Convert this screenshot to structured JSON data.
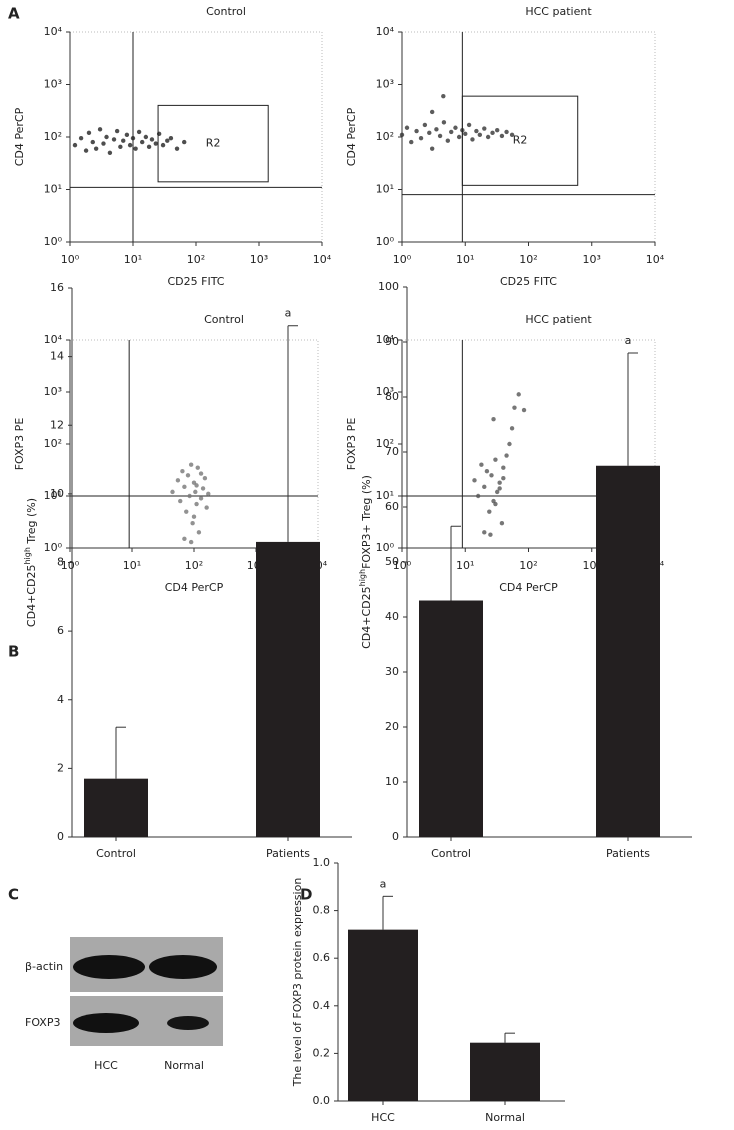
{
  "panel_labels": [
    "A",
    "B",
    "C",
    "D"
  ],
  "blot": {
    "rows": [
      "β-actin",
      "FOXP3"
    ],
    "lanes": [
      "HCC",
      "Normal"
    ]
  },
  "chart_data": [
    {
      "type": "scatter",
      "title": "Control",
      "xlabel": "CD25 FITC",
      "ylabel": "CD4 PerCP",
      "xscale": "log",
      "yscale": "log",
      "xlim": [
        1,
        10000
      ],
      "ylim": [
        1,
        10000
      ],
      "xticks": [
        {
          "value": 1,
          "label": "10⁰"
        },
        {
          "value": 10,
          "label": "10¹"
        },
        {
          "value": 100,
          "label": "10²"
        },
        {
          "value": 1000,
          "label": "10³"
        },
        {
          "value": 10000,
          "label": "10⁴"
        }
      ],
      "yticks": [
        {
          "value": 1,
          "label": "10⁰"
        },
        {
          "value": 10,
          "label": "10¹"
        },
        {
          "value": 100,
          "label": "10²"
        },
        {
          "value": 1000,
          "label": "10³"
        },
        {
          "value": 10000,
          "label": "10⁴"
        }
      ],
      "quadrant": {
        "x": 10,
        "y": 11
      },
      "gate": {
        "label": "R2",
        "x": [
          25,
          1400
        ],
        "y": [
          14,
          400
        ]
      },
      "color": "#222222",
      "x": [
        1.2,
        1.5,
        1.8,
        2,
        2.3,
        2.6,
        3,
        3.4,
        3.8,
        4.3,
        5,
        5.6,
        6.3,
        7,
        8,
        9,
        10,
        11,
        12.5,
        14,
        16,
        18,
        20,
        23,
        26,
        30,
        35,
        40,
        50,
        65
      ],
      "y": [
        70,
        95,
        55,
        120,
        80,
        60,
        140,
        75,
        100,
        50,
        90,
        130,
        65,
        85,
        110,
        70,
        95,
        60,
        125,
        80,
        100,
        65,
        90,
        75,
        115,
        70,
        85,
        95,
        60,
        80
      ]
    },
    {
      "type": "scatter",
      "title": "HCC patient",
      "xlabel": "CD25 FITC",
      "ylabel": "CD4 PerCP",
      "xscale": "log",
      "yscale": "log",
      "xlim": [
        1,
        10000
      ],
      "ylim": [
        1,
        10000
      ],
      "xticks": [
        {
          "value": 1,
          "label": "10⁰"
        },
        {
          "value": 10,
          "label": "10¹"
        },
        {
          "value": 100,
          "label": "10²"
        },
        {
          "value": 1000,
          "label": "10³"
        },
        {
          "value": 10000,
          "label": "10⁴"
        }
      ],
      "yticks": [
        {
          "value": 1,
          "label": "10⁰"
        },
        {
          "value": 10,
          "label": "10¹"
        },
        {
          "value": 100,
          "label": "10²"
        },
        {
          "value": 1000,
          "label": "10³"
        },
        {
          "value": 10000,
          "label": "10⁴"
        }
      ],
      "quadrant": {
        "x": 9,
        "y": 8
      },
      "gate": {
        "label": "R2",
        "x": [
          9,
          600
        ],
        "y": [
          12,
          600
        ]
      },
      "color": "#333333",
      "x": [
        1,
        1.2,
        1.4,
        1.7,
        2,
        2.3,
        2.7,
        3,
        3.5,
        4,
        4.6,
        5.3,
        6,
        7,
        8,
        9,
        10,
        11.5,
        13,
        15,
        17,
        20,
        23,
        27,
        32,
        38,
        45,
        55,
        4.5,
        3
      ],
      "y": [
        110,
        150,
        80,
        130,
        95,
        170,
        120,
        60,
        140,
        105,
        190,
        85,
        125,
        150,
        100,
        135,
        115,
        170,
        90,
        130,
        110,
        145,
        100,
        120,
        135,
        105,
        125,
        110,
        600,
        300
      ]
    },
    {
      "type": "scatter",
      "title": "Control",
      "xlabel": "CD4 PerCP",
      "ylabel": "FOXP3 PE",
      "xscale": "log",
      "yscale": "log",
      "xlim": [
        1,
        10000
      ],
      "ylim": [
        1,
        10000
      ],
      "xticks": [
        {
          "value": 1,
          "label": "10⁰"
        },
        {
          "value": 10,
          "label": "10¹"
        },
        {
          "value": 100,
          "label": "10²"
        },
        {
          "value": 1000,
          "label": "10³"
        },
        {
          "value": 10000,
          "label": "10⁴"
        }
      ],
      "yticks": [
        {
          "value": 1,
          "label": "10⁰"
        },
        {
          "value": 10,
          "label": "10¹"
        },
        {
          "value": 100,
          "label": "10²"
        },
        {
          "value": 1000,
          "label": "10³"
        },
        {
          "value": 10000,
          "label": "10⁴"
        }
      ],
      "quadrant": {
        "x": 9,
        "y": 10
      },
      "color": "#777777",
      "x": [
        45,
        55,
        60,
        65,
        70,
        75,
        80,
        85,
        90,
        95,
        100,
        105,
        110,
        115,
        120,
        130,
        140,
        150,
        160,
        170,
        70,
        90,
        100,
        110,
        130
      ],
      "y": [
        12,
        20,
        8,
        30,
        15,
        5,
        25,
        10,
        40,
        3,
        18,
        12,
        7,
        35,
        2,
        9,
        14,
        22,
        6,
        11,
        1.5,
        1.3,
        4,
        16,
        27
      ]
    },
    {
      "type": "scatter",
      "title": "HCC patient",
      "xlabel": "CD4 PerCP",
      "ylabel": "FOXP3 PE",
      "xscale": "log",
      "yscale": "log",
      "xlim": [
        1,
        10000
      ],
      "ylim": [
        1,
        10000
      ],
      "xticks": [
        {
          "value": 1,
          "label": "10⁰"
        },
        {
          "value": 10,
          "label": "10¹"
        },
        {
          "value": 100,
          "label": "10²"
        },
        {
          "value": 1000,
          "label": "10³"
        },
        {
          "value": 10000,
          "label": "10⁴"
        }
      ],
      "yticks": [
        {
          "value": 1,
          "label": "10⁰"
        },
        {
          "value": 10,
          "label": "10¹"
        },
        {
          "value": 100,
          "label": "10²"
        },
        {
          "value": 1000,
          "label": "10³"
        },
        {
          "value": 10000,
          "label": "10⁴"
        }
      ],
      "quadrant": {
        "x": 9,
        "y": 10
      },
      "color": "#555555",
      "x": [
        14,
        16,
        18,
        20,
        22,
        24,
        26,
        28,
        30,
        32,
        35,
        38,
        40,
        45,
        50,
        55,
        60,
        70,
        85,
        20,
        25,
        30,
        35,
        40,
        28
      ],
      "y": [
        20,
        10,
        40,
        15,
        30,
        5,
        25,
        8,
        50,
        12,
        18,
        3,
        35,
        60,
        100,
        200,
        500,
        900,
        450,
        2,
        1.8,
        7,
        14,
        22,
        300
      ]
    },
    {
      "type": "bar",
      "ylabel": [
        "CD4+CD25",
        "high",
        " Treg (%)"
      ],
      "categories": [
        "Control",
        "Patients"
      ],
      "values": [
        1.7,
        8.6
      ],
      "errors": [
        1.5,
        6.3
      ],
      "annotations": [
        null,
        "a"
      ],
      "color": "#231f20",
      "ylim": [
        0,
        16
      ],
      "yticks": [
        0,
        2,
        4,
        6,
        8,
        10,
        12,
        14,
        16
      ]
    },
    {
      "type": "bar",
      "ylabel": [
        "CD4+CD25",
        "high",
        "FOXP3+ Treg (%)"
      ],
      "categories": [
        "Control",
        "Patients"
      ],
      "values": [
        43,
        67.5
      ],
      "errors": [
        13.5,
        20.5
      ],
      "annotations": [
        null,
        "a"
      ],
      "color": "#231f20",
      "ylim": [
        0,
        100
      ],
      "yticks": [
        0,
        10,
        20,
        30,
        40,
        50,
        60,
        70,
        80,
        90,
        100
      ]
    },
    {
      "type": "bar",
      "ylabel": [
        "The level of FOXP3 protein expression"
      ],
      "categories": [
        "HCC",
        "Normal"
      ],
      "values": [
        0.72,
        0.245
      ],
      "errors": [
        0.14,
        0.04
      ],
      "annotations": [
        "a",
        null
      ],
      "color": "#231f20",
      "ylim": [
        0,
        1
      ],
      "yticks": [
        {
          "value": 0,
          "label": "0.0"
        },
        0.2,
        0.4,
        0.6,
        0.8,
        {
          "value": 1,
          "label": "1.0"
        }
      ]
    }
  ]
}
